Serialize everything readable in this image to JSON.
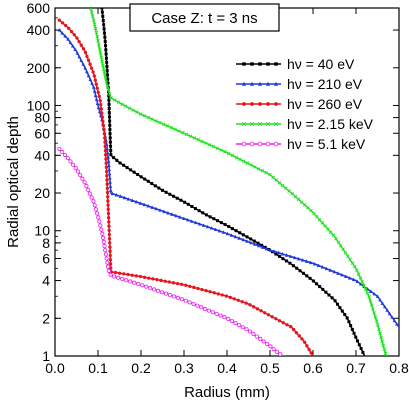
{
  "chart_data": {
    "type": "line",
    "title": "Case Z: t = 3 ns",
    "xlabel": "Radius (mm)",
    "ylabel": "Radial optical depth",
    "xlim": [
      0,
      0.8
    ],
    "ylim": [
      1,
      600
    ],
    "y_scale": "log",
    "grid": false,
    "legend_position": "top-right",
    "x_ticks": [
      "0.0",
      "0.1",
      "0.2",
      "0.3",
      "0.4",
      "0.5",
      "0.6",
      "0.7",
      "0.8"
    ],
    "x_tick_values": [
      0,
      0.1,
      0.2,
      0.3,
      0.4,
      0.5,
      0.6,
      0.7,
      0.8
    ],
    "y_ticks": [
      "1",
      "2",
      "4",
      "6",
      "8",
      "10",
      "20",
      "40",
      "60",
      "80",
      "100",
      "200",
      "400",
      "600"
    ],
    "y_tick_values": [
      1,
      2,
      4,
      6,
      8,
      10,
      20,
      40,
      60,
      80,
      100,
      200,
      400,
      600
    ],
    "series": [
      {
        "name": "hν = 40 eV",
        "color": "#000000",
        "marker": "square",
        "points": [
          [
            0.109,
            600
          ],
          [
            0.113,
            450
          ],
          [
            0.117,
            320
          ],
          [
            0.121,
            200
          ],
          [
            0.125,
            120
          ],
          [
            0.128,
            60
          ],
          [
            0.13,
            40
          ],
          [
            0.15,
            35
          ],
          [
            0.2,
            27
          ],
          [
            0.25,
            21
          ],
          [
            0.3,
            17
          ],
          [
            0.35,
            13.5
          ],
          [
            0.4,
            11
          ],
          [
            0.45,
            8.8
          ],
          [
            0.5,
            7
          ],
          [
            0.55,
            5.4
          ],
          [
            0.6,
            4
          ],
          [
            0.65,
            2.8
          ],
          [
            0.68,
            2
          ],
          [
            0.7,
            1.4
          ],
          [
            0.72,
            1
          ]
        ]
      },
      {
        "name": "hν = 210 eV",
        "color": "#1f3ad6",
        "marker": "triangle",
        "points": [
          [
            0.01,
            400
          ],
          [
            0.03,
            340
          ],
          [
            0.05,
            270
          ],
          [
            0.07,
            200
          ],
          [
            0.09,
            140
          ],
          [
            0.1,
            100
          ],
          [
            0.11,
            75
          ],
          [
            0.12,
            50
          ],
          [
            0.125,
            35
          ],
          [
            0.13,
            20
          ],
          [
            0.2,
            16.5
          ],
          [
            0.3,
            12.5
          ],
          [
            0.4,
            9.5
          ],
          [
            0.5,
            7
          ],
          [
            0.6,
            5.5
          ],
          [
            0.7,
            4
          ],
          [
            0.75,
            3
          ],
          [
            0.8,
            1.7
          ]
        ]
      },
      {
        "name": "hν = 260 eV",
        "color": "#e8141e",
        "marker": "circle",
        "points": [
          [
            0.01,
            480
          ],
          [
            0.03,
            420
          ],
          [
            0.05,
            350
          ],
          [
            0.07,
            270
          ],
          [
            0.09,
            180
          ],
          [
            0.105,
            110
          ],
          [
            0.115,
            60
          ],
          [
            0.12,
            30
          ],
          [
            0.125,
            12
          ],
          [
            0.128,
            7
          ],
          [
            0.13,
            4.7
          ],
          [
            0.2,
            4.3
          ],
          [
            0.3,
            3.7
          ],
          [
            0.4,
            3
          ],
          [
            0.45,
            2.6
          ],
          [
            0.5,
            2.1
          ],
          [
            0.55,
            1.7
          ],
          [
            0.58,
            1.3
          ],
          [
            0.6,
            1
          ]
        ]
      },
      {
        "name": "hν = 2.15 keV",
        "color": "#22e026",
        "marker": "cross",
        "points": [
          [
            0.083,
            600
          ],
          [
            0.09,
            480
          ],
          [
            0.1,
            330
          ],
          [
            0.11,
            220
          ],
          [
            0.12,
            150
          ],
          [
            0.13,
            115
          ],
          [
            0.15,
            105
          ],
          [
            0.2,
            85
          ],
          [
            0.3,
            60
          ],
          [
            0.4,
            42
          ],
          [
            0.5,
            28
          ],
          [
            0.55,
            20
          ],
          [
            0.6,
            14
          ],
          [
            0.65,
            9
          ],
          [
            0.7,
            5
          ],
          [
            0.73,
            3
          ],
          [
            0.75,
            1.8
          ],
          [
            0.77,
            1
          ]
        ]
      },
      {
        "name": "hν = 5.1 keV",
        "color": "#ef1ff0",
        "marker": "open-circle",
        "points": [
          [
            0.01,
            45
          ],
          [
            0.03,
            38
          ],
          [
            0.05,
            31
          ],
          [
            0.07,
            24
          ],
          [
            0.09,
            17
          ],
          [
            0.1,
            13
          ],
          [
            0.11,
            9.5
          ],
          [
            0.12,
            6
          ],
          [
            0.125,
            4.8
          ],
          [
            0.13,
            4.4
          ],
          [
            0.2,
            3.7
          ],
          [
            0.3,
            2.8
          ],
          [
            0.4,
            2
          ],
          [
            0.45,
            1.6
          ],
          [
            0.5,
            1.2
          ],
          [
            0.52,
            1.05
          ],
          [
            0.53,
            1
          ]
        ]
      }
    ]
  }
}
